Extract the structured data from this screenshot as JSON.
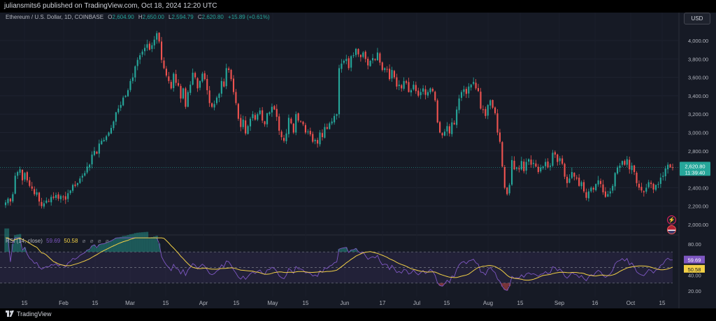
{
  "header": {
    "publisher": "juliansmits6 published on TradingView.com, Oct 18, 2024 12:20 UTC"
  },
  "legend": {
    "symbol": "Ethereum / U.S. Dollar, 1D, COINBASE",
    "open_label": "O",
    "open": "2,604.90",
    "high_label": "H",
    "high": "2,650.00",
    "low_label": "L",
    "low": "2,594.79",
    "close_label": "C",
    "close": "2,620.80",
    "change": "+15.89 (+0.61%)"
  },
  "currency": "USD",
  "price_tag": {
    "price": "2,620.80",
    "countdown": "11:39:40"
  },
  "rsi_legend": {
    "title": "RSI (14, close)",
    "rsi": "59.69",
    "ma": "50.58"
  },
  "rsi_tags": {
    "rsi": "59.69",
    "ma": "50.58"
  },
  "footer": {
    "brand": "TradingView"
  },
  "colors": {
    "up": "#26a69a",
    "down": "#ef5350",
    "rsi": "#7e57c2",
    "rsi_ma": "#f2d046",
    "background": "#161a25"
  },
  "chart_data": [
    {
      "type": "candlestick",
      "symbol": "ETHUSD",
      "interval": "1D",
      "price_axis_ticks": [
        "4,000.00",
        "3,800.00",
        "3,600.00",
        "3,400.00",
        "3,200.00",
        "3,000.00",
        "2,800.00",
        "2,600.00",
        "2,400.00",
        "2,200.00",
        "2,000.00"
      ],
      "price_axis_tick_values": [
        4000,
        3800,
        3600,
        3400,
        3200,
        3000,
        2800,
        2600,
        2400,
        2200,
        2000
      ],
      "ylim": [
        1850,
        4250
      ],
      "time_axis_ticks": [
        "15",
        "Feb",
        "15",
        "Mar",
        "15",
        "Apr",
        "15",
        "May",
        "15",
        "Jun",
        "17",
        "Jul",
        "15",
        "Aug",
        "15",
        "Sep",
        "16",
        "Oct",
        "15"
      ],
      "current_price": 2620.8,
      "closes_approx": [
        2240,
        2280,
        2250,
        2330,
        2530,
        2570,
        2600,
        2480,
        2560,
        2480,
        2420,
        2390,
        2330,
        2350,
        2250,
        2200,
        2230,
        2260,
        2250,
        2300,
        2290,
        2320,
        2280,
        2310,
        2300,
        2270,
        2340,
        2370,
        2430,
        2420,
        2450,
        2500,
        2530,
        2560,
        2630,
        2650,
        2760,
        2800,
        2770,
        2880,
        2910,
        2920,
        2960,
        3000,
        3050,
        3120,
        3220,
        3260,
        3300,
        3380,
        3400,
        3460,
        3560,
        3600,
        3720,
        3790,
        3840,
        3880,
        3920,
        3960,
        3900,
        3950,
        4010,
        4080,
        3990,
        3790,
        3700,
        3620,
        3560,
        3480,
        3640,
        3540,
        3510,
        3370,
        3480,
        3280,
        3440,
        3520,
        3650,
        3600,
        3480,
        3560,
        3640,
        3580,
        3460,
        3320,
        3280,
        3310,
        3380,
        3420,
        3560,
        3500,
        3700,
        3680,
        3580,
        3440,
        3320,
        3150,
        3060,
        3140,
        2990,
        3070,
        3150,
        3200,
        3140,
        3200,
        3240,
        3130,
        3090,
        3210,
        3220,
        3280,
        3250,
        3170,
        3020,
        2950,
        2910,
        2990,
        3160,
        3100,
        3000,
        3200,
        3130,
        3120,
        3090,
        3000,
        3010,
        2980,
        2900,
        2920,
        2880,
        3000,
        2950,
        3060,
        3040,
        3100,
        3120,
        3180,
        3200,
        3700,
        3750,
        3780,
        3800,
        3700,
        3830,
        3840,
        3910,
        3850,
        3820,
        3870,
        3800,
        3730,
        3780,
        3810,
        3790,
        3870,
        3760,
        3680,
        3700,
        3690,
        3580,
        3680,
        3600,
        3500,
        3520,
        3480,
        3560,
        3540,
        3440,
        3460,
        3520,
        3450,
        3400,
        3440,
        3480,
        3410,
        3440,
        3480,
        3450,
        3350,
        3110,
        3000,
        2970,
        3010,
        3070,
        2990,
        3110,
        3090,
        3250,
        3370,
        3440,
        3470,
        3420,
        3500,
        3520,
        3550,
        3480,
        3450,
        3260,
        3250,
        3180,
        3300,
        3350,
        3270,
        3210,
        3000,
        2900,
        2630,
        2400,
        2330,
        2430,
        2700,
        2600,
        2620,
        2600,
        2690,
        2580,
        2680,
        2710,
        2650,
        2670,
        2630,
        2570,
        2620,
        2630,
        2680,
        2620,
        2640,
        2780,
        2760,
        2680,
        2720,
        2660,
        2520,
        2450,
        2500,
        2570,
        2520,
        2500,
        2420,
        2460,
        2360,
        2290,
        2360,
        2400,
        2380,
        2440,
        2480,
        2440,
        2350,
        2300,
        2330,
        2360,
        2420,
        2560,
        2620,
        2640,
        2690,
        2650,
        2710,
        2600,
        2640,
        2570,
        2450,
        2400,
        2370,
        2350,
        2400,
        2460,
        2440,
        2380,
        2430,
        2440,
        2510,
        2530,
        2610,
        2650,
        2620.8,
        2620.8
      ]
    },
    {
      "type": "line",
      "name": "RSI (14, close)",
      "axis_ticks": [
        "80.00",
        "60.00",
        "40.00",
        "20.00"
      ],
      "axis_tick_values": [
        80,
        60,
        40,
        20
      ],
      "ylim": [
        15,
        90
      ],
      "bands": {
        "upper": 70,
        "middle": 50,
        "lower": 30
      },
      "series": [
        {
          "name": "RSI",
          "last": 59.69
        },
        {
          "name": "MA",
          "last": 50.58
        }
      ]
    }
  ]
}
